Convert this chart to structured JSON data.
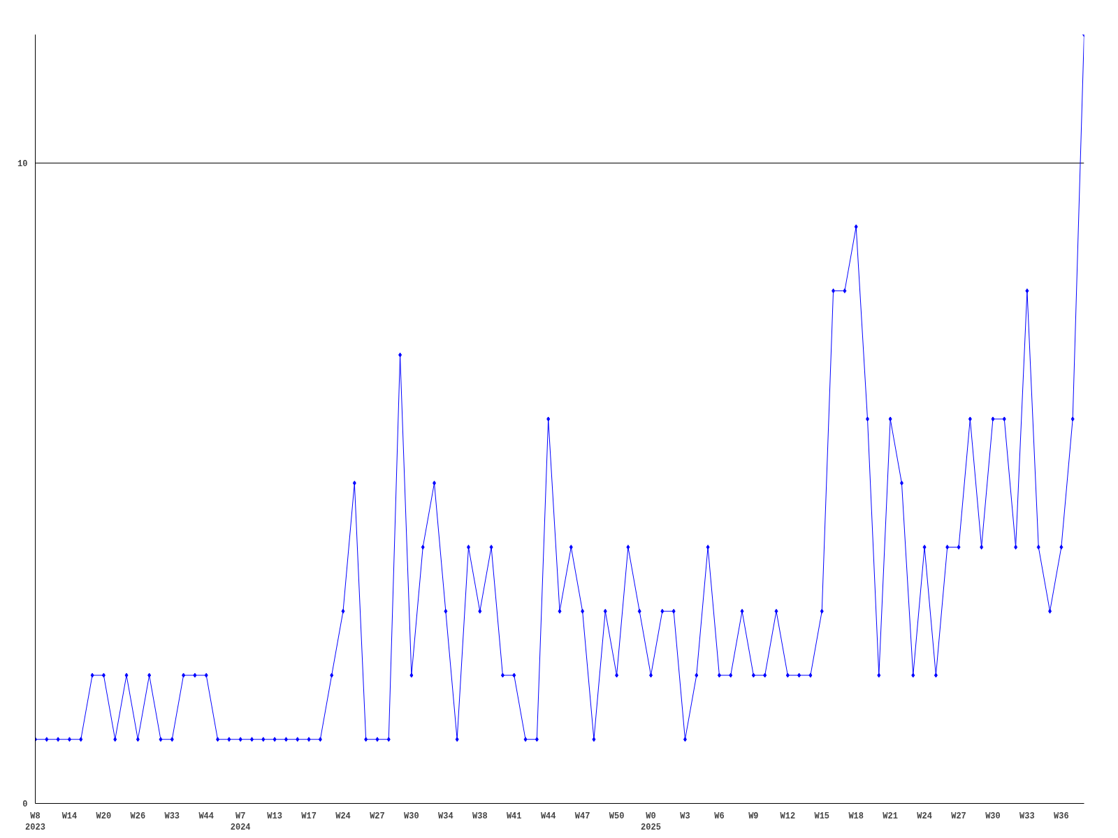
{
  "chart_data": {
    "type": "line",
    "categories": [
      "W8\n2023",
      null,
      null,
      "W14",
      null,
      null,
      "W20",
      null,
      null,
      "W26",
      null,
      null,
      "W33",
      null,
      null,
      "W44",
      null,
      null,
      "W7\n2024",
      null,
      null,
      "W13",
      null,
      null,
      "W17",
      null,
      null,
      "W24",
      null,
      null,
      "W27",
      null,
      null,
      "W30",
      null,
      null,
      "W34",
      null,
      null,
      "W38",
      null,
      null,
      "W41",
      null,
      null,
      "W44",
      null,
      null,
      "W47",
      null,
      null,
      "W50",
      null,
      null,
      "W0\n2025",
      null,
      null,
      "W3",
      null,
      null,
      "W6",
      null,
      null,
      "W9",
      null,
      null,
      "W12",
      null,
      null,
      "W15",
      null,
      null,
      "W18",
      null,
      null,
      "W21",
      null,
      null,
      "W24",
      null,
      null,
      "W27",
      null,
      null,
      "W30",
      null,
      null,
      "W33",
      null,
      null,
      "W36",
      null,
      null
    ],
    "series": [
      {
        "color": "#0000ff",
        "values": [
          1,
          1,
          1,
          1,
          1,
          2,
          2,
          1,
          2,
          1,
          2,
          1,
          1,
          2,
          2,
          2,
          1,
          1,
          1,
          1,
          1,
          1,
          1,
          1,
          1,
          1,
          2,
          3,
          5,
          1,
          1,
          1,
          7,
          2,
          4,
          5,
          3,
          1,
          4,
          3,
          4,
          2,
          2,
          1,
          1,
          6,
          3,
          4,
          3,
          1,
          3,
          2,
          4,
          3,
          2,
          3,
          3,
          1,
          2,
          4,
          2,
          2,
          3,
          2,
          2,
          3,
          2,
          2,
          2,
          3,
          8,
          8,
          9,
          6,
          2,
          6,
          5,
          2,
          4,
          2,
          4,
          4,
          6,
          4,
          6,
          6,
          4,
          8,
          4,
          3,
          4,
          6,
          12
        ]
      }
    ],
    "ylim": [
      0,
      12
    ],
    "yticks": [
      0,
      10
    ],
    "grid": "y",
    "marker": "diamond",
    "line_style": "solid"
  }
}
